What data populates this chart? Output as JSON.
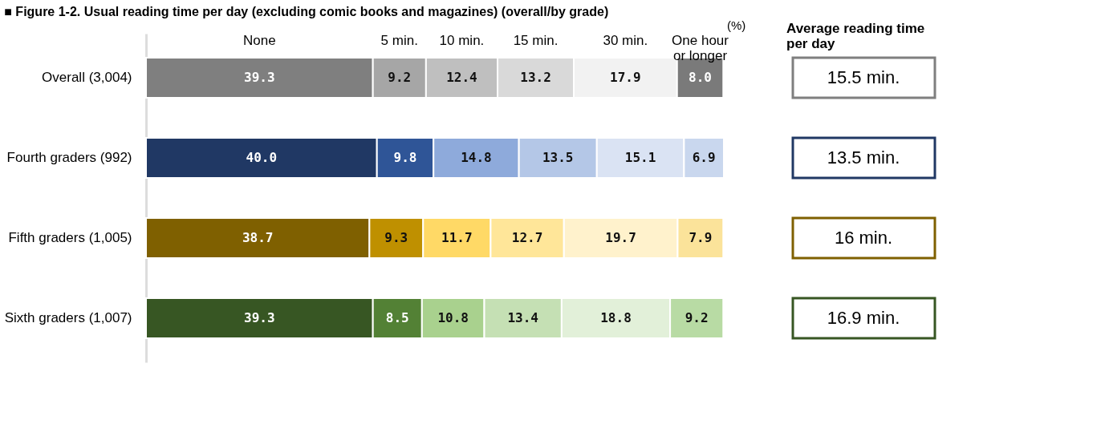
{
  "chart_data": {
    "type": "bar",
    "orientation": "horizontal",
    "stacked": true,
    "title": "■ Figure 1-2. Usual reading time per day (excluding comic books and magazines) (overall/by grade)",
    "categories": [
      "Overall (3,004)",
      "Fourth graders (992)",
      "Fifth graders (1,005)",
      "Sixth graders (1,007)"
    ],
    "series": [
      {
        "name": "None",
        "colors": [
          "#7f7f7f",
          "#203864",
          "#7f6000",
          "#375623"
        ],
        "values": [
          39.3,
          40.0,
          38.7,
          39.3
        ],
        "value_labels": [
          "39.3",
          "40.0",
          "38.7",
          "39.3"
        ]
      },
      {
        "name": "5 min.",
        "colors": [
          "#a6a6a6",
          "#2f5597",
          "#bf9000",
          "#538135"
        ],
        "values": [
          9.2,
          9.8,
          9.3,
          8.5
        ],
        "value_labels": [
          "9.2",
          "9.8",
          "9.3",
          "8.5"
        ]
      },
      {
        "name": "10 min.",
        "colors": [
          "#bfbfbf",
          "#8eaadb",
          "#ffd966",
          "#a9d18e"
        ],
        "values": [
          12.4,
          14.8,
          11.7,
          10.8
        ],
        "value_labels": [
          "12.4",
          "14.8",
          "11.7",
          "10.8"
        ]
      },
      {
        "name": "15 min.",
        "colors": [
          "#d9d9d9",
          "#b4c7e7",
          "#ffe699",
          "#c5e0b4"
        ],
        "values": [
          13.2,
          13.5,
          12.7,
          13.4
        ],
        "value_labels": [
          "13.2",
          "13.5",
          "12.7",
          "13.4"
        ]
      },
      {
        "name": "30 min.",
        "colors": [
          "#f2f2f2",
          "#dae3f3",
          "#fff2cc",
          "#e2f0d9"
        ],
        "values": [
          17.9,
          15.1,
          19.7,
          18.8
        ],
        "value_labels": [
          "17.9",
          "15.1",
          "19.7",
          "18.8"
        ]
      },
      {
        "name": "One hour or longer",
        "colors": [
          "#7a7a7a",
          "#c9d7ee",
          "#fbe39a",
          "#b8dba4"
        ],
        "values": [
          8.0,
          6.9,
          7.9,
          9.2
        ],
        "value_labels": [
          "8.0",
          "6.9",
          "7.9",
          "9.2"
        ]
      }
    ],
    "annotations": [
      "(%)",
      "Average reading time per day",
      "15.5 min.",
      "13.5 min.",
      "16 min.",
      "16.9 min."
    ]
  }
}
